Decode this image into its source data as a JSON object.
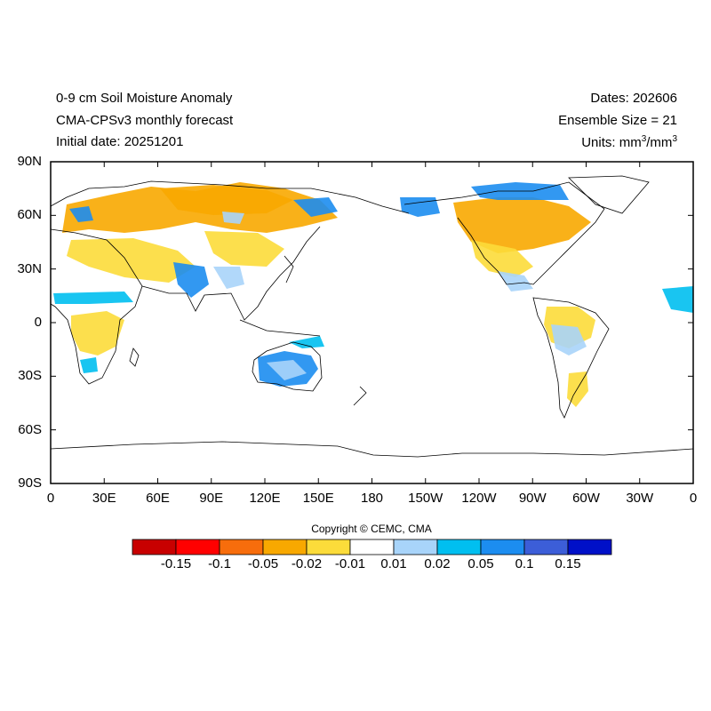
{
  "titles": {
    "left": [
      "0-9 cm Soil Moisture Anomaly",
      "CMA-CPSv3 monthly forecast",
      "Initial date: 20251201"
    ],
    "dates": "Dates: 202606",
    "ensemble": "Ensemble Size = 21",
    "units_prefix": "Units: mm",
    "units_mid": "/mm",
    "units_sup": "3"
  },
  "axes": {
    "lat_labels": [
      "90N",
      "60N",
      "30N",
      "0",
      "30S",
      "60S",
      "90S"
    ],
    "lon_labels": [
      "0",
      "30E",
      "60E",
      "90E",
      "120E",
      "150E",
      "180",
      "150W",
      "120W",
      "90W",
      "60W",
      "30W",
      "0"
    ]
  },
  "copyright": "Copyright © CEMC, CMA",
  "colorbar": {
    "colors": [
      "#c80000",
      "#ff0000",
      "#f76d0c",
      "#f8a800",
      "#fcdc3a",
      "#ffffff",
      "#a8d4fa",
      "#00bff0",
      "#1c8df0",
      "#3c5ed8",
      "#0010c8"
    ],
    "labels": [
      "-0.15",
      "-0.1",
      "-0.05",
      "-0.02",
      "-0.01",
      "0.01",
      "0.02",
      "0.05",
      "0.1",
      "0.15"
    ]
  },
  "palette": {
    "dry": "#f8a800",
    "dry_light": "#fcdc3a",
    "wet_light": "#a8d4fa",
    "wet": "#00bff0",
    "wet_strong": "#1c8df0"
  }
}
